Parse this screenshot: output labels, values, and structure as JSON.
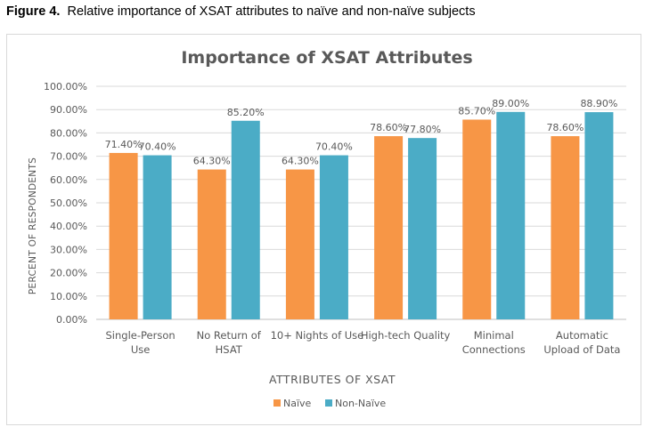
{
  "caption": {
    "label": "Figure 4.",
    "text": "Relative importance of XSAT attributes to naïve and non-naïve subjects"
  },
  "chart_data": {
    "type": "bar",
    "title": "Importance of XSAT Attributes",
    "xlabel": "ATTRIBUTES OF XSAT",
    "ylabel": "PERCENT OF RESPONDENTS",
    "ylim": [
      0,
      100
    ],
    "yticks": [
      "0.00%",
      "10.00%",
      "20.00%",
      "30.00%",
      "40.00%",
      "50.00%",
      "60.00%",
      "70.00%",
      "80.00%",
      "90.00%",
      "100.00%"
    ],
    "categories": [
      [
        "Single-Person",
        "Use"
      ],
      [
        "No Return of",
        "HSAT"
      ],
      [
        "10+ Nights of Use"
      ],
      [
        "High-tech Quality"
      ],
      [
        "Minimal",
        "Connections"
      ],
      [
        "Automatic",
        "Upload of Data"
      ]
    ],
    "series": [
      {
        "name": "Naïve",
        "color": "#f79646",
        "values": [
          71.4,
          64.3,
          64.3,
          78.6,
          85.7,
          78.6
        ],
        "labels": [
          "71.40%",
          "64.30%",
          "64.30%",
          "78.60%",
          "85.70%",
          "78.60%"
        ]
      },
      {
        "name": "Non-Naïve",
        "color": "#4bacc6",
        "values": [
          70.4,
          85.2,
          70.4,
          77.8,
          89.0,
          88.9
        ],
        "labels": [
          "70.40%",
          "85.20%",
          "70.40%",
          "77.80%",
          "89.00%",
          "88.90%"
        ]
      }
    ],
    "grid": true,
    "legend": "bottom"
  }
}
